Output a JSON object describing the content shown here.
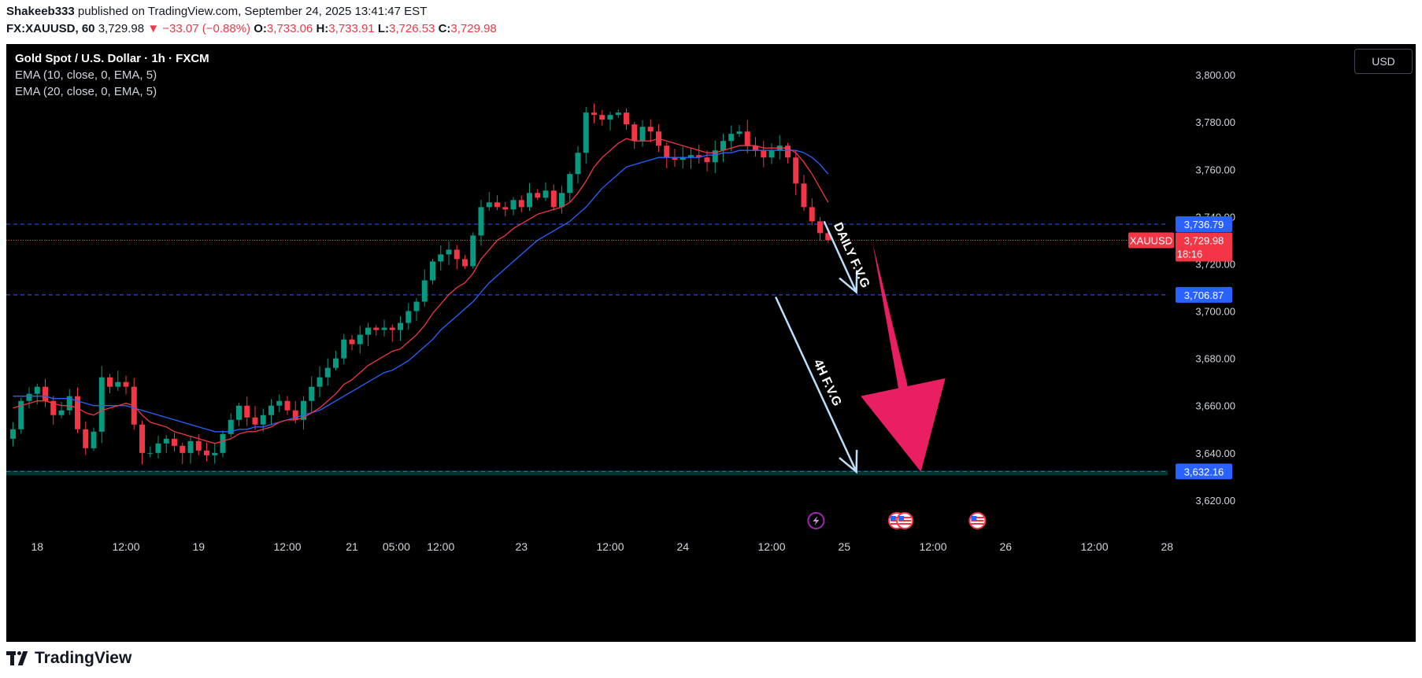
{
  "header": {
    "author": "Shakeeb333",
    "published_text": "published on TradingView.com, September 24, 2025 13:41:47 EST",
    "symbol": "FX:XAUUSD, 60",
    "last": "3,729.98",
    "change": "▼ −33.07 (−0.88%)",
    "o_label": "O:",
    "o": "3,733.06",
    "h_label": "H:",
    "h": "3,733.91",
    "l_label": "L:",
    "l": "3,726.53",
    "c_label": "C:",
    "c": "3,729.98"
  },
  "legend": {
    "title": "Gold Spot / U.S. Dollar · 1h · FXCM",
    "ema10": "EMA (10, close, 0, EMA, 5)",
    "ema20": "EMA (20, close, 0, EMA, 5)"
  },
  "currency_button": "USD",
  "footer": {
    "brand": "TradingView"
  },
  "colors": {
    "up": "#089981",
    "down": "#f23645",
    "ema10": "#f23645",
    "ema20": "#2962ff",
    "level": "#2962ff",
    "level_bg": "#2962ff",
    "arrow_light": "#bbdefb",
    "arrow_pink": "#e91e63",
    "price_tag": "#f23645"
  },
  "chart_data": {
    "type": "candlestick",
    "title": "Gold Spot / U.S. Dollar · 1h · FXCM",
    "ylim": [
      3605,
      3813
    ],
    "y_ticks": [
      3620,
      3640,
      3660,
      3680,
      3700,
      3720,
      3740,
      3760,
      3780,
      3800
    ],
    "y_tick_labels": [
      "3,620.00",
      "3,640.00",
      "3,660.00",
      "3,680.00",
      "3,700.00",
      "3,720.00",
      "3,740.00",
      "3,760.00",
      "3,780.00",
      "3,800.00"
    ],
    "x_range": [
      0,
      142
    ],
    "x_ticks": [
      {
        "x": 3,
        "label": "18"
      },
      {
        "x": 14,
        "label": "12:00"
      },
      {
        "x": 23,
        "label": "19"
      },
      {
        "x": 34,
        "label": "12:00"
      },
      {
        "x": 42,
        "label": "21"
      },
      {
        "x": 47.5,
        "label": "05:00"
      },
      {
        "x": 53,
        "label": "12:00"
      },
      {
        "x": 63,
        "label": "23"
      },
      {
        "x": 74,
        "label": "12:00"
      },
      {
        "x": 83,
        "label": "24"
      },
      {
        "x": 94,
        "label": "12:00"
      },
      {
        "x": 103,
        "label": "25"
      },
      {
        "x": 114,
        "label": "12:00"
      },
      {
        "x": 123,
        "label": "26"
      },
      {
        "x": 134,
        "label": "12:00"
      },
      {
        "x": 143,
        "label": "28"
      }
    ],
    "close": [
      3650,
      3662,
      3665,
      3668,
      3662,
      3656,
      3658,
      3664,
      3650,
      3642,
      3649,
      3672,
      3668,
      3670,
      3668,
      3652,
      3640,
      3640,
      3644,
      3646,
      3643,
      3640,
      3645,
      3641,
      3639,
      3640,
      3648,
      3654,
      3660,
      3655,
      3652,
      3656,
      3660,
      3662,
      3658,
      3654,
      3662,
      3668,
      3672,
      3676,
      3680,
      3688,
      3686,
      3690,
      3693,
      3692,
      3693,
      3692,
      3695,
      3700,
      3704,
      3713,
      3721,
      3724,
      3726,
      3722,
      3719,
      3732,
      3744,
      3746,
      3744,
      3743,
      3747,
      3744,
      3750,
      3748,
      3751,
      3744,
      3750,
      3758,
      3767,
      3784,
      3783,
      3781,
      3783,
      3784,
      3779,
      3772,
      3778,
      3776,
      3770,
      3765,
      3764,
      3765,
      3766,
      3765,
      3763,
      3768,
      3772,
      3775,
      3776,
      3770,
      3768,
      3765,
      3768,
      3770,
      3765,
      3754,
      3744,
      3738,
      3733,
      3729.98
    ],
    "ema10": [
      3659,
      3660,
      3661,
      3662,
      3662,
      3661,
      3660,
      3660,
      3659,
      3657,
      3656,
      3658,
      3659,
      3660,
      3661,
      3660,
      3656,
      3653,
      3652,
      3651,
      3649,
      3648,
      3647,
      3646,
      3645,
      3644,
      3645,
      3646,
      3648,
      3649,
      3649,
      3650,
      3651,
      3653,
      3654,
      3654,
      3655,
      3657,
      3659,
      3662,
      3665,
      3669,
      3671,
      3674,
      3677,
      3679,
      3681,
      3683,
      3684,
      3687,
      3690,
      3694,
      3699,
      3703,
      3707,
      3710,
      3712,
      3716,
      3722,
      3726,
      3730,
      3732,
      3735,
      3737,
      3739,
      3741,
      3742,
      3743,
      3744,
      3746,
      3750,
      3755,
      3761,
      3765,
      3768,
      3771,
      3773,
      3772,
      3772,
      3772,
      3773,
      3772,
      3771,
      3770,
      3769,
      3768,
      3767,
      3767,
      3768,
      3769,
      3770,
      3770,
      3770,
      3769,
      3769,
      3769,
      3769,
      3767,
      3763,
      3758,
      3752,
      3746
    ],
    "ema20": [
      3664,
      3664,
      3664,
      3664,
      3664,
      3663,
      3663,
      3663,
      3662,
      3661,
      3660,
      3660,
      3660,
      3660,
      3660,
      3659,
      3658,
      3657,
      3656,
      3655,
      3654,
      3653,
      3652,
      3651,
      3650,
      3649,
      3649,
      3649,
      3650,
      3650,
      3651,
      3651,
      3652,
      3653,
      3654,
      3655,
      3656,
      3657,
      3658,
      3660,
      3662,
      3664,
      3666,
      3668,
      3670,
      3672,
      3674,
      3675,
      3677,
      3679,
      3682,
      3685,
      3688,
      3692,
      3695,
      3698,
      3701,
      3704,
      3708,
      3712,
      3715,
      3718,
      3721,
      3724,
      3727,
      3730,
      3732,
      3734,
      3736,
      3738,
      3741,
      3744,
      3748,
      3752,
      3755,
      3758,
      3761,
      3762,
      3763,
      3764,
      3765,
      3765,
      3765,
      3765,
      3765,
      3765,
      3766,
      3766,
      3767,
      3767,
      3768,
      3768,
      3768,
      3768,
      3768,
      3768,
      3768,
      3768,
      3767,
      3765,
      3762,
      3758
    ],
    "horizontal_levels": [
      {
        "value": 3736.79,
        "label": "3,736.79"
      },
      {
        "value": 3706.87,
        "label": "3,706.87"
      },
      {
        "value": 3632.16,
        "label": "3,632.16"
      }
    ],
    "last_price": {
      "value": 3729.98,
      "symbol": "XAUUSD",
      "label": "3,729.98",
      "countdown": "18:16"
    },
    "annotations": [
      {
        "type": "arrow",
        "from": [
          100.5,
          3738
        ],
        "to": [
          104.5,
          3708
        ],
        "text": "DAILY F.V.G"
      },
      {
        "type": "arrow",
        "from": [
          94.5,
          3706
        ],
        "to": [
          104.5,
          3632
        ],
        "text": "4H F.V.G"
      },
      {
        "type": "big-arrow",
        "from": [
          106.5,
          3729
        ],
        "to": [
          112.5,
          3632
        ]
      }
    ],
    "event_icons": [
      {
        "x": 99.5,
        "kind": "lightning"
      },
      {
        "x": 109.5,
        "kind": "us-flag"
      },
      {
        "x": 110.5,
        "kind": "us-flag"
      },
      {
        "x": 119.5,
        "kind": "us-flag"
      }
    ]
  }
}
